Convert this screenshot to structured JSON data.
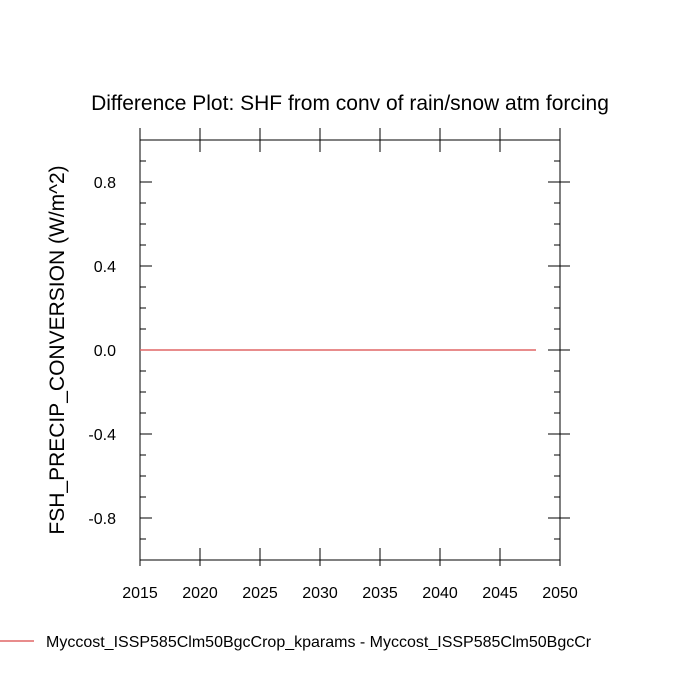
{
  "chart_data": {
    "type": "line",
    "title": "Difference Plot: SHF from conv of rain/snow atm forcing",
    "xlabel": "",
    "ylabel": "FSH_PRECIP_CONVERSION  (W/m^2)",
    "xlim": [
      2015,
      2050
    ],
    "ylim": [
      -1.0,
      1.0
    ],
    "x_ticks": [
      2015,
      2020,
      2025,
      2030,
      2035,
      2040,
      2045,
      2050
    ],
    "x_tick_labels": [
      "2015",
      "2020",
      "2025",
      "2030",
      "2035",
      "2040",
      "2045",
      "2050"
    ],
    "y_ticks": [
      0.8,
      0.4,
      0.0,
      -0.4,
      -0.8
    ],
    "y_tick_labels": [
      "0.8",
      "0.4",
      "0.0",
      "-0.4",
      "-0.8"
    ],
    "grid": false,
    "legend_position": "bottom",
    "series": [
      {
        "name": "Myccost_ISSP585Clm50BgcCrop_kparams - Myccost_ISSP585Clm50BgcCr",
        "color": "#e06666",
        "x": [
          2015,
          2016,
          2017,
          2018,
          2019,
          2020,
          2021,
          2022,
          2023,
          2024,
          2025,
          2026,
          2027,
          2028,
          2029,
          2030,
          2031,
          2032,
          2033,
          2034,
          2035,
          2036,
          2037,
          2038,
          2039,
          2040,
          2041,
          2042,
          2043,
          2044,
          2045,
          2046,
          2047,
          2048
        ],
        "y": [
          0,
          0,
          0,
          0,
          0,
          0,
          0,
          0,
          0,
          0,
          0,
          0,
          0,
          0,
          0,
          0,
          0,
          0,
          0,
          0,
          0,
          0,
          0,
          0,
          0,
          0,
          0,
          0,
          0,
          0,
          0,
          0,
          0,
          0
        ]
      }
    ]
  }
}
